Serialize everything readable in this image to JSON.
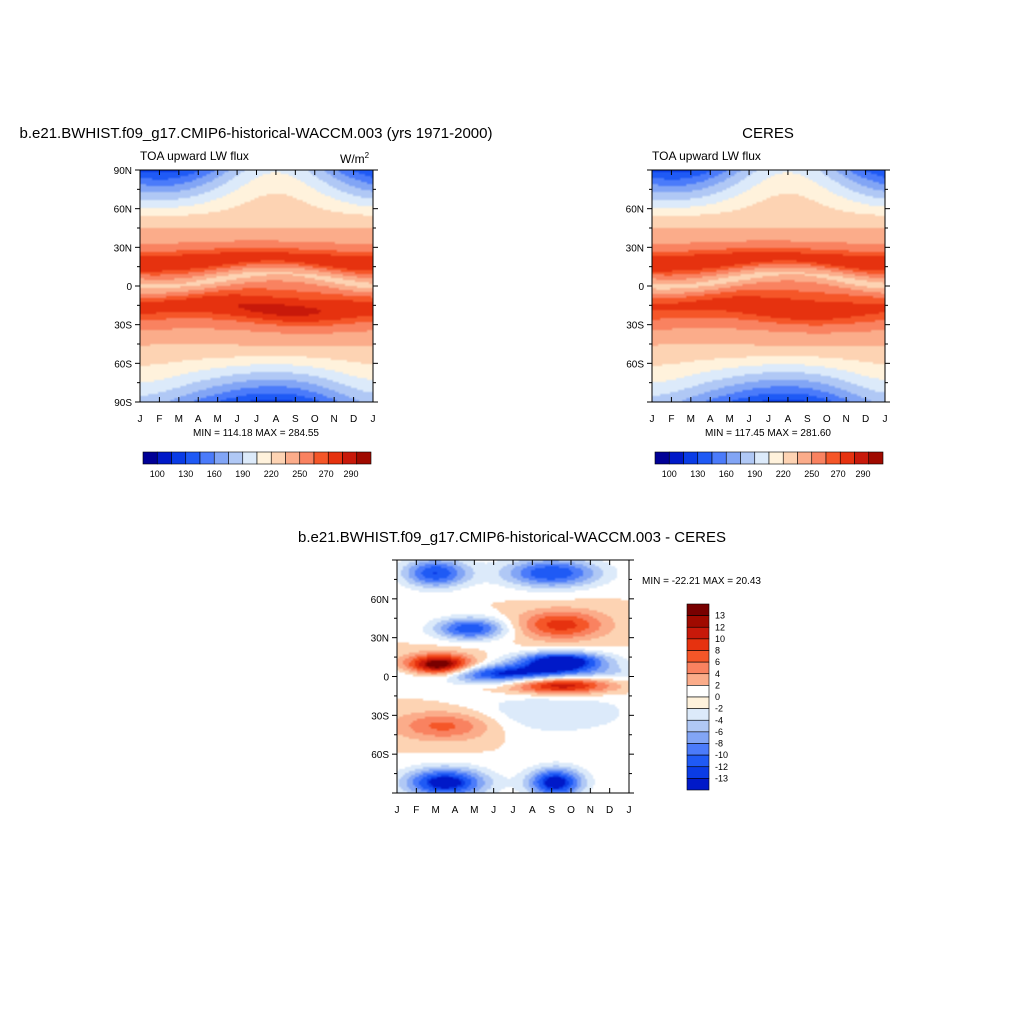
{
  "figure": {
    "units_label": "W/m",
    "units_sup": "2",
    "colors": [
      "#000096",
      "#0019c8",
      "#0a3ce6",
      "#1f5af5",
      "#4b7bfa",
      "#82a5f5",
      "#b0c8f5",
      "#dceafa",
      "#fff2dc",
      "#fdd3b3",
      "#fbac8a",
      "#f98260",
      "#f55628",
      "#e6320f",
      "#c8190a",
      "#a00a00",
      "#780000"
    ]
  },
  "chart_data": [
    {
      "panel_id": "model",
      "type": "heatmap",
      "title": "b.e21.BWHIST.f09_g17.CMIP6-historical-WACCM.003 (yrs 1971-2000)",
      "subtitle": "TOA upward LW flux",
      "units": "W/m2",
      "x_tick_labels": [
        "J",
        "F",
        "M",
        "A",
        "M",
        "J",
        "J",
        "A",
        "S",
        "O",
        "N",
        "D",
        "J"
      ],
      "y_tick_labels": [
        "90N",
        "60N",
        "30N",
        "0",
        "30S",
        "60S",
        "90S"
      ],
      "y_tick_values": [
        90,
        60,
        30,
        0,
        -30,
        -60,
        -90
      ],
      "ylim": [
        -90,
        90
      ],
      "stats": "MIN = 114.18 MAX = 284.55",
      "colorbar_labels": [
        "100",
        "130",
        "160",
        "190",
        "220",
        "250",
        "270",
        "290"
      ],
      "colorbar_levels": [
        90,
        100,
        115,
        130,
        145,
        160,
        175,
        190,
        205,
        220,
        235,
        250,
        260,
        270,
        280,
        290
      ]
    },
    {
      "panel_id": "obs",
      "type": "heatmap",
      "title": "CERES",
      "subtitle": "TOA upward LW flux",
      "x_tick_labels": [
        "J",
        "F",
        "M",
        "A",
        "M",
        "J",
        "J",
        "A",
        "S",
        "O",
        "N",
        "D",
        "J"
      ],
      "y_tick_labels": [
        "60N",
        "30N",
        "0",
        "30S",
        "60S"
      ],
      "y_tick_values": [
        60,
        30,
        0,
        -30,
        -60
      ],
      "ylim": [
        -90,
        90
      ],
      "stats": "MIN = 117.45 MAX = 281.60",
      "colorbar_labels": [
        "100",
        "130",
        "160",
        "190",
        "220",
        "250",
        "270",
        "290"
      ],
      "colorbar_levels": [
        90,
        100,
        115,
        130,
        145,
        160,
        175,
        190,
        205,
        220,
        235,
        250,
        260,
        270,
        280,
        290
      ]
    },
    {
      "panel_id": "diff",
      "type": "heatmap",
      "title": "b.e21.BWHIST.f09_g17.CMIP6-historical-WACCM.003 - CERES",
      "x_tick_labels": [
        "J",
        "F",
        "M",
        "A",
        "M",
        "J",
        "J",
        "A",
        "S",
        "O",
        "N",
        "D",
        "J"
      ],
      "y_tick_labels": [
        "60N",
        "30N",
        "0",
        "30S",
        "60S"
      ],
      "y_tick_values": [
        60,
        30,
        0,
        -30,
        -60
      ],
      "ylim": [
        -90,
        90
      ],
      "stats": "MIN = -22.21 MAX =  20.43",
      "colorbar_labels": [
        "13",
        "12",
        "10",
        "8",
        "6",
        "4",
        "2",
        "0",
        "-2",
        "-4",
        "-6",
        "-8",
        "-10",
        "-12",
        "-13"
      ],
      "colorbar_levels": [
        -13,
        -12,
        -10,
        -8,
        -6,
        -4,
        -2,
        0,
        2,
        4,
        6,
        8,
        10,
        12,
        13
      ]
    }
  ]
}
